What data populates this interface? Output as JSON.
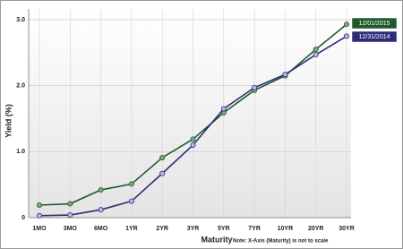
{
  "chart_data": {
    "type": "line",
    "ylabel": "Yield (%)",
    "xlabel": "Maturity",
    "note": "Note: X-Axis (Maturity) is not to scale",
    "categories": [
      "1MO",
      "3MO",
      "6MO",
      "1YR",
      "2YR",
      "3YR",
      "5YR",
      "7YR",
      "10YR",
      "20YR",
      "30YR"
    ],
    "series": [
      {
        "name": "12/01/2015",
        "color": "#1e5a2c",
        "marker_color": "#7fa882",
        "values": [
          0.19,
          0.21,
          0.42,
          0.51,
          0.91,
          1.19,
          1.59,
          1.93,
          2.15,
          2.55,
          2.93
        ]
      },
      {
        "name": "12/31/2014",
        "color": "#2c2c78",
        "marker_color": "#b4bce4",
        "values": [
          0.03,
          0.04,
          0.12,
          0.25,
          0.67,
          1.1,
          1.65,
          1.97,
          2.17,
          2.47,
          2.75
        ]
      }
    ],
    "ylim": [
      0,
      3
    ],
    "yticks": [
      0,
      {
        "value": 1,
        "label": "1.0"
      },
      {
        "value": 2,
        "label": "2.0"
      },
      {
        "value": 3,
        "label": "3.0"
      }
    ],
    "grid": true
  }
}
